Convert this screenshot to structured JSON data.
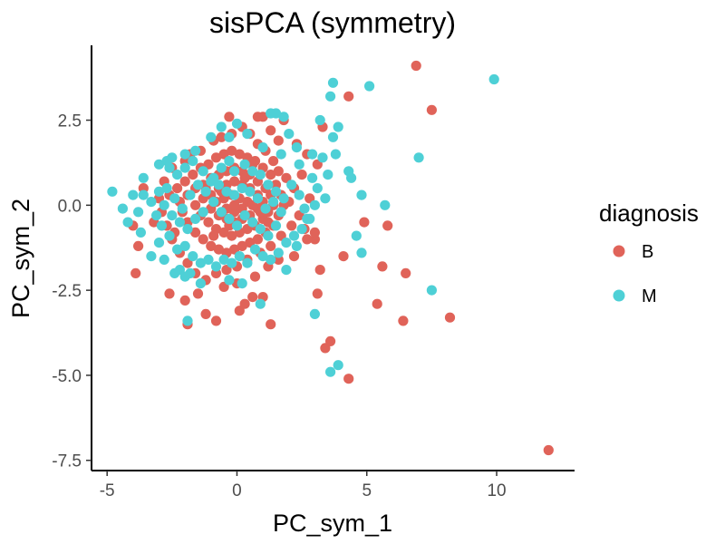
{
  "chart_data": {
    "type": "scatter",
    "title": "sisPCA (symmetry)",
    "xlabel": "PC_sym_1",
    "ylabel": "PC_sym_2",
    "xlim": [
      -5.6,
      13.0
    ],
    "ylim": [
      -7.8,
      4.7
    ],
    "xticks": [
      -5,
      0,
      5,
      10
    ],
    "xtick_labels": [
      "-5",
      "0",
      "5",
      "10"
    ],
    "yticks": [
      -7.5,
      -5.0,
      -2.5,
      0.0,
      2.5
    ],
    "ytick_labels": [
      "-7.5",
      "-5.0",
      "-2.5",
      "0.0",
      "2.5"
    ],
    "grid": false,
    "legend": {
      "title": "diagnosis",
      "position": "right"
    },
    "series": [
      {
        "name": "B",
        "color": "#E06359",
        "points": [
          [
            6.9,
            4.1
          ],
          [
            7.5,
            2.8
          ],
          [
            4.3,
            3.2
          ],
          [
            3.3,
            2.3
          ],
          [
            1.0,
            2.6
          ],
          [
            1.3,
            2.2
          ],
          [
            1.8,
            2.5
          ],
          [
            2.7,
            1.5
          ],
          [
            3.1,
            1.2
          ],
          [
            4.9,
            -0.5
          ],
          [
            5.8,
            -0.6
          ],
          [
            5.6,
            -1.8
          ],
          [
            6.5,
            -2.0
          ],
          [
            8.2,
            -3.3
          ],
          [
            6.4,
            -3.4
          ],
          [
            5.4,
            -2.9
          ],
          [
            4.1,
            -1.5
          ],
          [
            3.2,
            -1.9
          ],
          [
            3.1,
            -2.6
          ],
          [
            3.4,
            -4.2
          ],
          [
            3.6,
            -4.0
          ],
          [
            4.3,
            -5.1
          ],
          [
            12.0,
            -7.2
          ],
          [
            3.0,
            -1.0
          ],
          [
            3.0,
            -0.8
          ],
          [
            2.7,
            -1.0
          ],
          [
            2.2,
            -1.5
          ],
          [
            1.6,
            -1.6
          ],
          [
            1.2,
            -1.8
          ],
          [
            1.0,
            -2.7
          ],
          [
            0.6,
            -2.7
          ],
          [
            1.3,
            -3.5
          ],
          [
            0.1,
            -3.1
          ],
          [
            -0.8,
            -3.4
          ],
          [
            -1.2,
            -3.2
          ],
          [
            -1.9,
            -3.5
          ],
          [
            -2.6,
            -2.6
          ],
          [
            -3.9,
            -2.0
          ],
          [
            -3.8,
            -1.2
          ],
          [
            -4.0,
            -0.6
          ],
          [
            -3.6,
            0.5
          ],
          [
            -2.8,
            0.7
          ],
          [
            -2.5,
            1.1
          ],
          [
            -2.0,
            1.3
          ],
          [
            -1.4,
            1.6
          ],
          [
            -0.9,
            1.9
          ],
          [
            -0.6,
            2.0
          ],
          [
            -0.2,
            2.1
          ],
          [
            0.2,
            2.3
          ],
          [
            0.5,
            2.1
          ],
          [
            0.8,
            1.8
          ],
          [
            1.1,
            1.6
          ],
          [
            1.4,
            1.3
          ],
          [
            1.6,
            1.0
          ],
          [
            1.9,
            0.8
          ],
          [
            2.2,
            0.5
          ],
          [
            2.0,
            0.1
          ],
          [
            2.4,
            -0.3
          ],
          [
            2.1,
            -0.6
          ],
          [
            1.7,
            -0.9
          ],
          [
            1.3,
            -1.2
          ],
          [
            0.9,
            -1.4
          ],
          [
            0.4,
            -1.6
          ],
          [
            0.0,
            -1.8
          ],
          [
            -0.4,
            -1.9
          ],
          [
            -0.8,
            -2.0
          ],
          [
            -1.2,
            -2.2
          ],
          [
            -1.6,
            -2.0
          ],
          [
            -1.9,
            -1.7
          ],
          [
            -2.2,
            -1.4
          ],
          [
            -2.5,
            -1.0
          ],
          [
            -2.7,
            -0.6
          ],
          [
            -2.9,
            -0.2
          ],
          [
            -3.0,
            0.2
          ],
          [
            -2.6,
            0.3
          ],
          [
            -2.3,
            0.5
          ],
          [
            -2.0,
            0.7
          ],
          [
            -1.7,
            0.9
          ],
          [
            -1.4,
            1.1
          ],
          [
            -1.1,
            1.2
          ],
          [
            -0.8,
            1.4
          ],
          [
            -0.5,
            1.5
          ],
          [
            -0.2,
            1.6
          ],
          [
            0.1,
            1.5
          ],
          [
            0.4,
            1.4
          ],
          [
            0.7,
            1.3
          ],
          [
            1.0,
            1.1
          ],
          [
            1.3,
            0.9
          ],
          [
            1.5,
            0.6
          ],
          [
            1.7,
            0.3
          ],
          [
            1.8,
            0.0
          ],
          [
            1.6,
            -0.3
          ],
          [
            1.4,
            -0.6
          ],
          [
            1.1,
            -0.8
          ],
          [
            0.8,
            -1.0
          ],
          [
            0.5,
            -1.1
          ],
          [
            0.2,
            -1.2
          ],
          [
            -0.1,
            -1.3
          ],
          [
            -0.4,
            -1.4
          ],
          [
            -0.7,
            -1.3
          ],
          [
            -1.0,
            -1.2
          ],
          [
            -1.3,
            -1.0
          ],
          [
            -1.6,
            -0.8
          ],
          [
            -1.9,
            -0.5
          ],
          [
            -2.1,
            -0.2
          ],
          [
            -2.2,
            0.1
          ],
          [
            -1.9,
            0.3
          ],
          [
            -1.6,
            0.5
          ],
          [
            -1.3,
            0.6
          ],
          [
            -1.0,
            0.8
          ],
          [
            -0.7,
            0.9
          ],
          [
            -0.4,
            1.0
          ],
          [
            -0.1,
            1.1
          ],
          [
            0.2,
            1.0
          ],
          [
            0.5,
            0.9
          ],
          [
            0.8,
            0.7
          ],
          [
            1.1,
            0.5
          ],
          [
            1.3,
            0.3
          ],
          [
            1.4,
            0.0
          ],
          [
            1.2,
            -0.2
          ],
          [
            1.0,
            -0.4
          ],
          [
            0.7,
            -0.6
          ],
          [
            0.4,
            -0.7
          ],
          [
            0.1,
            -0.8
          ],
          [
            -0.2,
            -0.9
          ],
          [
            -0.5,
            -0.8
          ],
          [
            -0.8,
            -0.7
          ],
          [
            -1.1,
            -0.5
          ],
          [
            -1.4,
            -0.3
          ],
          [
            -1.6,
            0.0
          ],
          [
            -1.3,
            0.2
          ],
          [
            -1.0,
            0.3
          ],
          [
            -0.7,
            0.5
          ],
          [
            -0.4,
            0.6
          ],
          [
            -0.1,
            0.7
          ],
          [
            0.2,
            0.6
          ],
          [
            0.5,
            0.5
          ],
          [
            0.8,
            0.3
          ],
          [
            1.0,
            0.1
          ],
          [
            0.8,
            -0.1
          ],
          [
            0.5,
            -0.3
          ],
          [
            0.2,
            -0.4
          ],
          [
            -0.1,
            -0.5
          ],
          [
            -0.4,
            -0.4
          ],
          [
            -0.7,
            -0.3
          ],
          [
            -1.0,
            -0.1
          ],
          [
            -0.8,
            0.1
          ],
          [
            -0.5,
            0.2
          ],
          [
            -0.2,
            0.3
          ],
          [
            0.1,
            0.2
          ],
          [
            0.4,
            0.1
          ],
          [
            0.2,
            -0.1
          ],
          [
            -0.1,
            -0.2
          ],
          [
            -0.4,
            -0.1
          ],
          [
            -0.1,
            0.0
          ],
          [
            0.6,
            0.0
          ],
          [
            -0.6,
            0.4
          ],
          [
            0.3,
            0.8
          ],
          [
            -0.3,
            -0.6
          ],
          [
            0.9,
            -0.2
          ],
          [
            -1.2,
            0.5
          ],
          [
            1.2,
            -0.5
          ],
          [
            -0.9,
            -0.9
          ],
          [
            0.6,
            1.2
          ],
          [
            -2.4,
            -0.8
          ],
          [
            -3.2,
            -0.5
          ],
          [
            -1.8,
            1.5
          ],
          [
            2.5,
            0.9
          ],
          [
            2.8,
            0.2
          ],
          [
            2.6,
            -0.7
          ],
          [
            0.0,
            -2.3
          ],
          [
            -0.5,
            -2.4
          ],
          [
            0.7,
            -2.1
          ],
          [
            -1.5,
            -2.6
          ],
          [
            -0.3,
            2.6
          ],
          [
            0.8,
            2.6
          ],
          [
            1.6,
            1.9
          ],
          [
            2.3,
            1.8
          ],
          [
            -2.0,
            -2.8
          ],
          [
            0.3,
            -2.9
          ]
        ]
      },
      {
        "name": "M",
        "color": "#4ED0D6",
        "points": [
          [
            9.9,
            3.7
          ],
          [
            5.1,
            3.5
          ],
          [
            3.7,
            3.6
          ],
          [
            3.6,
            3.2
          ],
          [
            3.2,
            2.5
          ],
          [
            3.9,
            2.3
          ],
          [
            3.7,
            2.0
          ],
          [
            1.5,
            2.7
          ],
          [
            1.3,
            2.7
          ],
          [
            1.8,
            2.6
          ],
          [
            2.3,
            1.7
          ],
          [
            2.9,
            1.5
          ],
          [
            3.3,
            1.4
          ],
          [
            4.3,
            1.0
          ],
          [
            4.4,
            0.8
          ],
          [
            4.8,
            0.3
          ],
          [
            5.7,
            0.0
          ],
          [
            7.0,
            1.4
          ],
          [
            4.6,
            -0.9
          ],
          [
            4.8,
            -1.4
          ],
          [
            7.5,
            -2.5
          ],
          [
            3.0,
            -3.2
          ],
          [
            3.6,
            -4.9
          ],
          [
            3.9,
            -4.7
          ],
          [
            1.9,
            -1.9
          ],
          [
            0.9,
            -2.9
          ],
          [
            -0.6,
            2.3
          ],
          [
            -2.8,
            -1.6
          ],
          [
            -4.8,
            0.4
          ],
          [
            -4.2,
            -0.5
          ],
          [
            -4.0,
            0.3
          ],
          [
            -3.6,
            0.8
          ],
          [
            -3.3,
            -1.5
          ],
          [
            -3.0,
            -1.1
          ],
          [
            -2.6,
            1.1
          ],
          [
            -2.3,
            0.9
          ],
          [
            -2.0,
            1.1
          ],
          [
            -1.7,
            1.3
          ],
          [
            -1.3,
            1.0
          ],
          [
            -0.9,
            0.8
          ],
          [
            -0.6,
            1.1
          ],
          [
            -0.3,
            1.3
          ],
          [
            -0.1,
            1.0
          ],
          [
            0.3,
            1.2
          ],
          [
            0.6,
            1.0
          ],
          [
            0.9,
            0.9
          ],
          [
            1.2,
            0.6
          ],
          [
            1.5,
            0.4
          ],
          [
            1.8,
            0.2
          ],
          [
            2.1,
            0.6
          ],
          [
            2.4,
            0.3
          ],
          [
            2.6,
            -0.1
          ],
          [
            2.8,
            -0.4
          ],
          [
            2.5,
            -0.7
          ],
          [
            2.2,
            -0.9
          ],
          [
            1.9,
            -1.1
          ],
          [
            1.6,
            -1.4
          ],
          [
            1.3,
            -1.6
          ],
          [
            1.0,
            -1.5
          ],
          [
            0.7,
            -1.3
          ],
          [
            0.4,
            -1.7
          ],
          [
            0.1,
            -1.5
          ],
          [
            -0.2,
            -1.7
          ],
          [
            -0.5,
            -1.6
          ],
          [
            -0.8,
            -1.8
          ],
          [
            -1.1,
            -1.6
          ],
          [
            -1.4,
            -1.7
          ],
          [
            -1.7,
            -1.5
          ],
          [
            -2.0,
            -1.2
          ],
          [
            -2.3,
            -1.3
          ],
          [
            -2.6,
            -0.9
          ],
          [
            -2.9,
            -0.6
          ],
          [
            -3.1,
            -0.3
          ],
          [
            -3.3,
            0.1
          ],
          [
            -3.0,
            0.4
          ],
          [
            -2.7,
            0.5
          ],
          [
            -2.4,
            0.2
          ],
          [
            -2.1,
            -0.1
          ],
          [
            -1.8,
            0.3
          ],
          [
            -1.5,
            0.6
          ],
          [
            -1.2,
            0.4
          ],
          [
            -0.9,
            0.1
          ],
          [
            -0.6,
            -0.2
          ],
          [
            -0.3,
            -0.4
          ],
          [
            0.0,
            -0.6
          ],
          [
            0.3,
            -0.3
          ],
          [
            0.6,
            -0.5
          ],
          [
            0.9,
            -0.7
          ],
          [
            1.2,
            -0.9
          ],
          [
            1.5,
            -0.6
          ],
          [
            1.7,
            -0.2
          ],
          [
            1.4,
            0.1
          ],
          [
            1.1,
            -0.1
          ],
          [
            0.8,
            0.2
          ],
          [
            0.5,
            0.4
          ],
          [
            0.2,
            0.5
          ],
          [
            -0.1,
            0.3
          ],
          [
            -0.4,
            0.4
          ],
          [
            -0.7,
            0.6
          ],
          [
            -1.0,
            0.7
          ],
          [
            -1.3,
            -0.2
          ],
          [
            -1.6,
            -0.4
          ],
          [
            -1.9,
            -0.7
          ],
          [
            -2.2,
            -0.5
          ],
          [
            -2.5,
            -0.3
          ],
          [
            -2.8,
            0.0
          ],
          [
            0.0,
            2.4
          ],
          [
            0.4,
            2.1
          ],
          [
            -0.3,
            2.0
          ],
          [
            -1.6,
            1.6
          ],
          [
            -2.0,
            1.5
          ],
          [
            -2.5,
            1.4
          ],
          [
            -3.0,
            1.2
          ],
          [
            -3.6,
            0.3
          ],
          [
            -3.8,
            -0.2
          ],
          [
            -4.4,
            -0.1
          ],
          [
            -1.9,
            -3.4
          ],
          [
            -1.4,
            -2.3
          ],
          [
            -2.2,
            -1.9
          ],
          [
            -2.0,
            -2.1
          ],
          [
            -1.8,
            -2.0
          ],
          [
            -0.3,
            -2.2
          ],
          [
            0.2,
            -2.3
          ],
          [
            2.4,
            1.2
          ],
          [
            2.9,
            0.8
          ],
          [
            3.1,
            0.5
          ],
          [
            3.4,
            0.2
          ],
          [
            3.0,
            0.0
          ],
          [
            2.7,
            -0.4
          ],
          [
            2.3,
            -1.2
          ],
          [
            1.0,
            1.7
          ],
          [
            1.7,
            1.5
          ],
          [
            -1.0,
            2.0
          ],
          [
            -2.7,
            1.3
          ],
          [
            3.8,
            1.5
          ],
          [
            3.5,
            0.9
          ],
          [
            2.0,
            2.1
          ],
          [
            -2.4,
            -2.0
          ],
          [
            -3.7,
            -0.8
          ]
        ]
      }
    ]
  }
}
